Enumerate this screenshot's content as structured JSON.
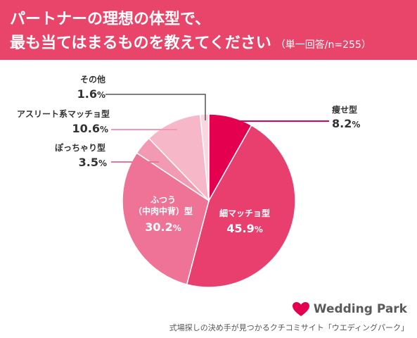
{
  "header": {
    "title_line1": "パートナーの理想の体型で、",
    "title_line2": "最も当てはまるものを教えてください",
    "title_note": "（単一回答/n=255）"
  },
  "chart_data": {
    "type": "pie",
    "start": "12 o'clock",
    "direction": "clockwise",
    "slices": [
      {
        "label": "痩せ型",
        "value": 8.2,
        "color": "#e5004f"
      },
      {
        "label": "細マッチョ型",
        "value": 45.9,
        "color": "#e83f6f"
      },
      {
        "label": "ふつう（中肉中背）型",
        "value": 30.2,
        "color": "#ee7397"
      },
      {
        "label": "ぽっちゃり型",
        "value": 3.5,
        "color": "#f29ab3"
      },
      {
        "label": "アスリート系マッチョ型",
        "value": 10.6,
        "color": "#f6b8c9"
      },
      {
        "label": "その他",
        "value": 1.6,
        "color": "#fad6e0"
      }
    ],
    "value_unit": "%"
  },
  "labels": {
    "yase_name": "痩せ型",
    "yase_val": "8.2",
    "hoso_name": "細マッチョ型",
    "hoso_val": "45.9",
    "futsu_line1": "ふつう",
    "futsu_line2": "（中肉中背）型",
    "futsu_val": "30.2",
    "pocha_name": "ぽっちゃり型",
    "pocha_val": "3.5",
    "athl_name": "アスリート系マッチョ型",
    "athl_val": "10.6",
    "other_name": "その他",
    "other_val": "1.6",
    "pct": "%"
  },
  "brand": {
    "name": "Wedding Park",
    "color": "#e5004f"
  },
  "footer": {
    "caption": "式場探しの決め手が見つかるクチコミサイト「ウエディングパーク」"
  }
}
